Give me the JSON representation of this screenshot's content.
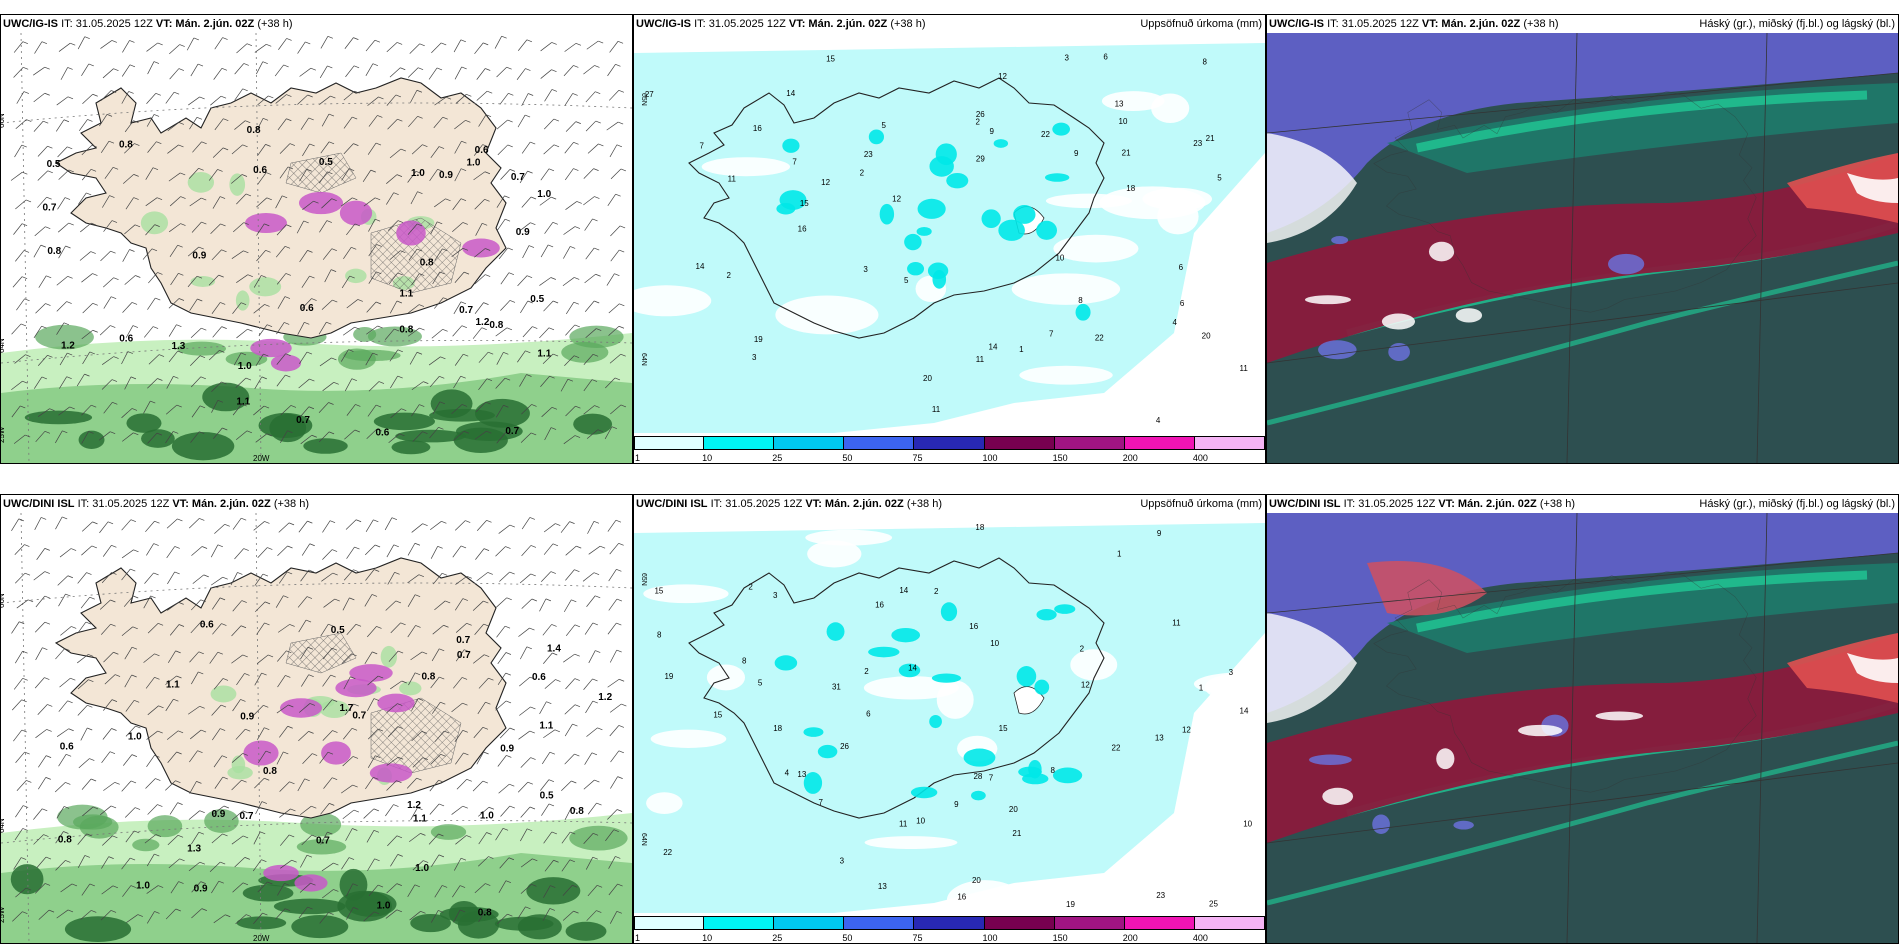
{
  "panels": {
    "r1": {
      "model": "UWC/IG-IS",
      "it": "IT: 31.05.2025 12Z",
      "vt": "VT: Mán. 2.jún. 02Z",
      "lead": "(+38 h)",
      "precip_title": "Uppsöfnuð úrkoma (mm)",
      "cloud_title": "Háský (gr.), miðský (fj.bl.) og lágský (bl.)"
    },
    "r2": {
      "model": "UWC/DINI ISL",
      "it": "IT: 31.05.2025 12Z",
      "vt": "VT: Mán. 2.jún. 02Z",
      "lead": "(+38 h)",
      "precip_title": "Uppsöfnuð úrkoma (mm)",
      "cloud_title": "Háský (gr.), miðský (fj.bl.) og lágský (bl.)"
    }
  },
  "grid_labels": {
    "lat66": "66N",
    "lat64": "64N",
    "lon25": "25W",
    "lon20": "20W",
    "lat65r": "65N",
    "lat64r": "64N"
  },
  "colorbar": {
    "ticks": [
      "1",
      "10",
      "25",
      "50",
      "75",
      "100",
      "150",
      "200",
      "400"
    ],
    "colors": [
      "#e0ffff",
      "#00f5f5",
      "#00c8f0",
      "#3c64f0",
      "#2828b4",
      "#780050",
      "#a01482",
      "#f014b4",
      "#f5b4f5"
    ]
  },
  "map_colors": {
    "land": "#f3e6d6",
    "sea_precip": "#ffffff",
    "precip_light": "#c0fafa",
    "precip_cyan": "#00e8e8",
    "green_light": "#c8f0c0",
    "green_dark": "#286e32",
    "magenta": "#c858c8",
    "cloud_deep": "#2d4f50",
    "cloud_purple": "#6060c8",
    "cloud_red": "#8a1a3c",
    "cloud_teal": "#20c090"
  },
  "wind_labels_r1": [
    "0.5",
    "0.6",
    "0.8",
    "0.7",
    "1.0",
    "0.9",
    "1.1",
    "1.2",
    "0.5",
    "0.6",
    "0.7",
    "0.5",
    "1.1",
    "0.6",
    "0.8",
    "0.7",
    "1.0",
    "0.6",
    "0.8",
    "0.9",
    "1.3",
    "0.8",
    "1.0",
    "1.1",
    "1.2",
    "0.6",
    "0.7",
    "0.8",
    "0.9",
    "1.0",
    "0.8",
    "0.7"
  ],
  "wind_labels_r2": [
    "0.7",
    "0.5",
    "0.6",
    "0.9",
    "1.1",
    "1.2",
    "0.7",
    "0.8",
    "1.0",
    "1.2",
    "0.9",
    "0.5",
    "1.1",
    "0.6",
    "0.7",
    "1.0",
    "0.8",
    "0.9",
    "1.0",
    "0.8",
    "1.1",
    "0.6",
    "1.3",
    "1.4",
    "0.7",
    "0.8",
    "0.9",
    "1.0",
    "1.7",
    "0.7",
    "0.8",
    "1.0"
  ],
  "precip_labels_r1": [
    "2",
    "3",
    "2",
    "3",
    "4",
    "5",
    "6",
    "7",
    "8",
    "9",
    "10",
    "11",
    "12",
    "14",
    "15",
    "16",
    "18",
    "19",
    "20",
    "21",
    "22",
    "23",
    "26",
    "27",
    "29",
    "12",
    "14",
    "16",
    "9",
    "10",
    "11",
    "13",
    "7",
    "6",
    "5",
    "4",
    "3",
    "2",
    "1",
    "12",
    "8",
    "7",
    "6",
    "5",
    "14",
    "20",
    "15",
    "11",
    "23",
    "11",
    "22",
    "21"
  ],
  "precip_labels_r2": [
    "3",
    "2",
    "10",
    "8",
    "3",
    "2",
    "1",
    "13",
    "18",
    "20",
    "23",
    "15",
    "16",
    "14",
    "25",
    "22",
    "26",
    "21",
    "19",
    "12",
    "13",
    "16",
    "14",
    "20",
    "28",
    "31",
    "15",
    "10",
    "9",
    "8",
    "7",
    "6",
    "5",
    "4",
    "3",
    "2",
    "1",
    "12",
    "11",
    "16",
    "18",
    "19",
    "13",
    "22",
    "7",
    "8",
    "9",
    "10",
    "11",
    "14",
    "15",
    "2"
  ]
}
